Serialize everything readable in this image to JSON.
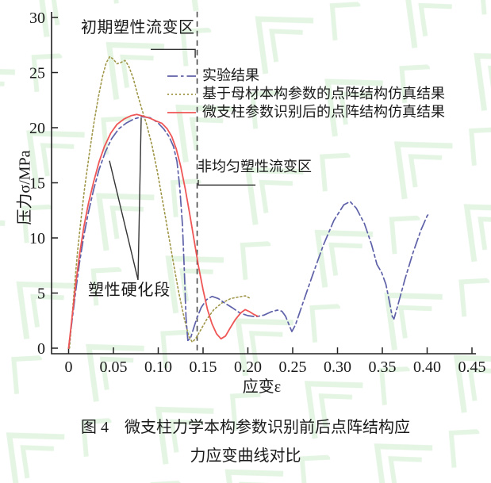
{
  "figure": {
    "caption_line1": "图 4　微支柱力学本构参数识别前后点阵结构应",
    "caption_line2": "力应变曲线对比"
  },
  "watermark": {
    "color": "#cdeccd"
  },
  "chart_data": {
    "type": "line",
    "title": "",
    "xlabel": "应变ε",
    "ylabel": "压力σ/MPa",
    "xlim": [
      0,
      0.45
    ],
    "ylim": [
      0,
      30
    ],
    "grid": false,
    "legend_position": "upper-right-inside-no-frame",
    "axis_color": "#222222",
    "xticks": {
      "values": [
        0,
        0.05,
        0.1,
        0.15,
        0.2,
        0.25,
        0.3,
        0.35,
        0.4,
        0.45
      ],
      "labels": [
        "0",
        "0.05",
        "0.10",
        "0.15",
        "0.20",
        "0.25",
        "0.30",
        "0.35",
        "0.40",
        "0.45"
      ]
    },
    "yticks": {
      "values": [
        0,
        5,
        10,
        15,
        20,
        25,
        30
      ],
      "labels": [
        "0",
        "5",
        "10",
        "15",
        "20",
        "25",
        "30"
      ]
    },
    "series": [
      {
        "name": "实验结果",
        "slug": "experimental",
        "color": "#5e61a8",
        "dash": "13 4 3.5 4",
        "width": 1.7,
        "points": [
          [
            0,
            0
          ],
          [
            0.004,
            2.6
          ],
          [
            0.008,
            5.2
          ],
          [
            0.012,
            7.7
          ],
          [
            0.017,
            10.2
          ],
          [
            0.022,
            12.3
          ],
          [
            0.028,
            14.4
          ],
          [
            0.034,
            16.2
          ],
          [
            0.041,
            17.8
          ],
          [
            0.048,
            19.0
          ],
          [
            0.056,
            19.9
          ],
          [
            0.064,
            20.4
          ],
          [
            0.073,
            20.8
          ],
          [
            0.082,
            21.0
          ],
          [
            0.091,
            20.9
          ],
          [
            0.099,
            20.5
          ],
          [
            0.106,
            19.9
          ],
          [
            0.112,
            19.2
          ],
          [
            0.117,
            18.3
          ],
          [
            0.121,
            16.9
          ],
          [
            0.124,
            14.6
          ],
          [
            0.127,
            11.2
          ],
          [
            0.129,
            7.2
          ],
          [
            0.131,
            2.8
          ],
          [
            0.133,
            0.7
          ],
          [
            0.136,
            0.9
          ],
          [
            0.139,
            1.7
          ],
          [
            0.143,
            2.7
          ],
          [
            0.148,
            3.7
          ],
          [
            0.154,
            4.4
          ],
          [
            0.16,
            4.7
          ],
          [
            0.167,
            4.5
          ],
          [
            0.174,
            4.1
          ],
          [
            0.182,
            3.7
          ],
          [
            0.191,
            3.2
          ],
          [
            0.2,
            2.95
          ],
          [
            0.209,
            2.85
          ],
          [
            0.218,
            3.0
          ],
          [
            0.226,
            3.3
          ],
          [
            0.233,
            3.45
          ],
          [
            0.238,
            3.35
          ],
          [
            0.242,
            2.9
          ],
          [
            0.246,
            2.1
          ],
          [
            0.249,
            1.5
          ],
          [
            0.253,
            2.1
          ],
          [
            0.261,
            4.0
          ],
          [
            0.272,
            6.6
          ],
          [
            0.284,
            9.3
          ],
          [
            0.296,
            11.6
          ],
          [
            0.307,
            13.0
          ],
          [
            0.314,
            13.3
          ],
          [
            0.321,
            12.7
          ],
          [
            0.33,
            11.3
          ],
          [
            0.338,
            9.4
          ],
          [
            0.344,
            7.6
          ],
          [
            0.349,
            6.9
          ],
          [
            0.354,
            5.8
          ],
          [
            0.358,
            4.2
          ],
          [
            0.361,
            2.9
          ],
          [
            0.363,
            2.65
          ],
          [
            0.367,
            3.8
          ],
          [
            0.375,
            6.2
          ],
          [
            0.384,
            8.6
          ],
          [
            0.393,
            10.7
          ],
          [
            0.4,
            12.0
          ],
          [
            0.403,
            12.3
          ]
        ]
      },
      {
        "name": "基于母材本构参数的点阵结构仿真结果",
        "slug": "base-material-simulation",
        "color": "#a09648",
        "dash": "2 3",
        "width": 1.6,
        "points": [
          [
            0.001,
            0
          ],
          [
            0.004,
            3.0
          ],
          [
            0.007,
            6.0
          ],
          [
            0.01,
            8.8
          ],
          [
            0.014,
            11.8
          ],
          [
            0.018,
            14.6
          ],
          [
            0.023,
            17.6
          ],
          [
            0.028,
            20.3
          ],
          [
            0.033,
            22.7
          ],
          [
            0.038,
            24.7
          ],
          [
            0.042,
            25.9
          ],
          [
            0.046,
            26.45
          ],
          [
            0.05,
            26.2
          ],
          [
            0.054,
            25.8
          ],
          [
            0.058,
            25.9
          ],
          [
            0.063,
            26.1
          ],
          [
            0.067,
            25.6
          ],
          [
            0.072,
            24.5
          ],
          [
            0.077,
            23.0
          ],
          [
            0.082,
            21.6
          ],
          [
            0.087,
            20.3
          ],
          [
            0.093,
            18.4
          ],
          [
            0.099,
            16.0
          ],
          [
            0.105,
            13.3
          ],
          [
            0.111,
            10.5
          ],
          [
            0.117,
            7.7
          ],
          [
            0.123,
            5.0
          ],
          [
            0.129,
            2.7
          ],
          [
            0.134,
            1.1
          ],
          [
            0.138,
            0.55
          ],
          [
            0.142,
            0.9
          ],
          [
            0.147,
            1.6
          ],
          [
            0.154,
            2.6
          ],
          [
            0.162,
            3.5
          ],
          [
            0.171,
            4.1
          ],
          [
            0.181,
            4.5
          ],
          [
            0.19,
            4.65
          ],
          [
            0.197,
            4.75
          ],
          [
            0.203,
            4.5
          ]
        ]
      },
      {
        "name": "微支柱参数识别后的点阵结构仿真结果",
        "slug": "identified-parameter-simulation",
        "color": "#ef5656",
        "dash": "",
        "width": 1.8,
        "points": [
          [
            0,
            0
          ],
          [
            0.004,
            2.9
          ],
          [
            0.008,
            5.8
          ],
          [
            0.012,
            8.4
          ],
          [
            0.017,
            11.0
          ],
          [
            0.022,
            13.1
          ],
          [
            0.028,
            15.1
          ],
          [
            0.034,
            16.9
          ],
          [
            0.04,
            18.3
          ],
          [
            0.047,
            19.5
          ],
          [
            0.054,
            20.3
          ],
          [
            0.062,
            20.8
          ],
          [
            0.07,
            21.1
          ],
          [
            0.076,
            21.2
          ],
          [
            0.083,
            21.05
          ],
          [
            0.091,
            20.85
          ],
          [
            0.098,
            20.6
          ],
          [
            0.104,
            20.4
          ],
          [
            0.11,
            19.9
          ],
          [
            0.115,
            19.2
          ],
          [
            0.12,
            18.1
          ],
          [
            0.125,
            16.5
          ],
          [
            0.13,
            14.5
          ],
          [
            0.135,
            12.2
          ],
          [
            0.14,
            9.8
          ],
          [
            0.145,
            7.4
          ],
          [
            0.15,
            5.3
          ],
          [
            0.155,
            3.5
          ],
          [
            0.16,
            2.2
          ],
          [
            0.165,
            1.3
          ],
          [
            0.17,
            0.85
          ],
          [
            0.175,
            1.1
          ],
          [
            0.18,
            1.8
          ],
          [
            0.186,
            2.6
          ],
          [
            0.192,
            3.2
          ],
          [
            0.197,
            3.5
          ],
          [
            0.202,
            3.3
          ],
          [
            0.207,
            3.05
          ],
          [
            0.211,
            2.9
          ]
        ]
      }
    ],
    "annotations": {
      "initial_plastic_zone": {
        "text": "初期塑性流变区",
        "leader": [
          [
            0.0916,
            27.1
          ],
          [
            0.1412,
            27.1
          ],
          [
            0.1412,
            26.35
          ]
        ]
      },
      "nonuniform_plastic_zone": {
        "text": "非均匀塑性流变区",
        "leader": [
          [
            0.1447,
            15.25
          ],
          [
            0.1447,
            14.8
          ],
          [
            0.2085,
            14.8
          ]
        ]
      },
      "plastic_hardening": {
        "text": "塑性硬化段",
        "leaders": [
          [
            [
              0.0456,
              17.0
            ],
            [
              0.0774,
              6.2
            ]
          ],
          [
            [
              0.0774,
              6.2
            ],
            [
              0.081,
              20.9
            ]
          ]
        ]
      },
      "dashed_boundary_line": {
        "x": 0.1434,
        "y_from": -0.2,
        "y_to": 30.7
      }
    }
  }
}
